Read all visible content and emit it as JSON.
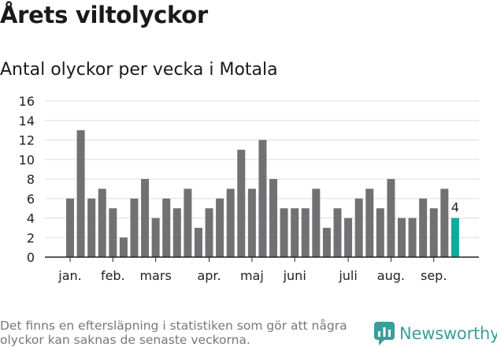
{
  "title": "Årets viltolyckor",
  "subtitle": "Antal olyckor per vecka i Motala",
  "footnote": "Det finns en eftersläpning i statistiken som gör att några olyckor kan saknas de senaste veckorna.",
  "brand": {
    "name": "Newsworthy",
    "icon": "newsworthy-logo-icon",
    "color": "#3a9e9a"
  },
  "chart_data": {
    "type": "bar",
    "ylim": [
      0,
      16
    ],
    "y_ticks": [
      "0",
      "2",
      "4",
      "6",
      "8",
      "10",
      "12",
      "14",
      "16"
    ],
    "grid": true,
    "values": [
      6,
      13,
      6,
      7,
      5,
      2,
      6,
      8,
      4,
      6,
      5,
      7,
      3,
      5,
      6,
      7,
      11,
      7,
      12,
      8,
      5,
      5,
      5,
      7,
      3,
      5,
      4,
      6,
      7,
      5,
      8,
      4,
      4,
      6,
      5,
      7,
      4
    ],
    "highlight_label": "4",
    "month_labels": [
      {
        "label": "jan.",
        "week_index": 0
      },
      {
        "label": "feb.",
        "week_index": 4
      },
      {
        "label": "mars",
        "week_index": 8
      },
      {
        "label": "apr.",
        "week_index": 13
      },
      {
        "label": "maj",
        "week_index": 17
      },
      {
        "label": "juni",
        "week_index": 21
      },
      {
        "label": "juli",
        "week_index": 26
      },
      {
        "label": "aug.",
        "week_index": 30
      },
      {
        "label": "sep.",
        "week_index": 34
      }
    ],
    "colors": {
      "bar": "#717174",
      "highlight": "#13a89e",
      "grid": "#dddddd",
      "axis": "#222222"
    }
  }
}
